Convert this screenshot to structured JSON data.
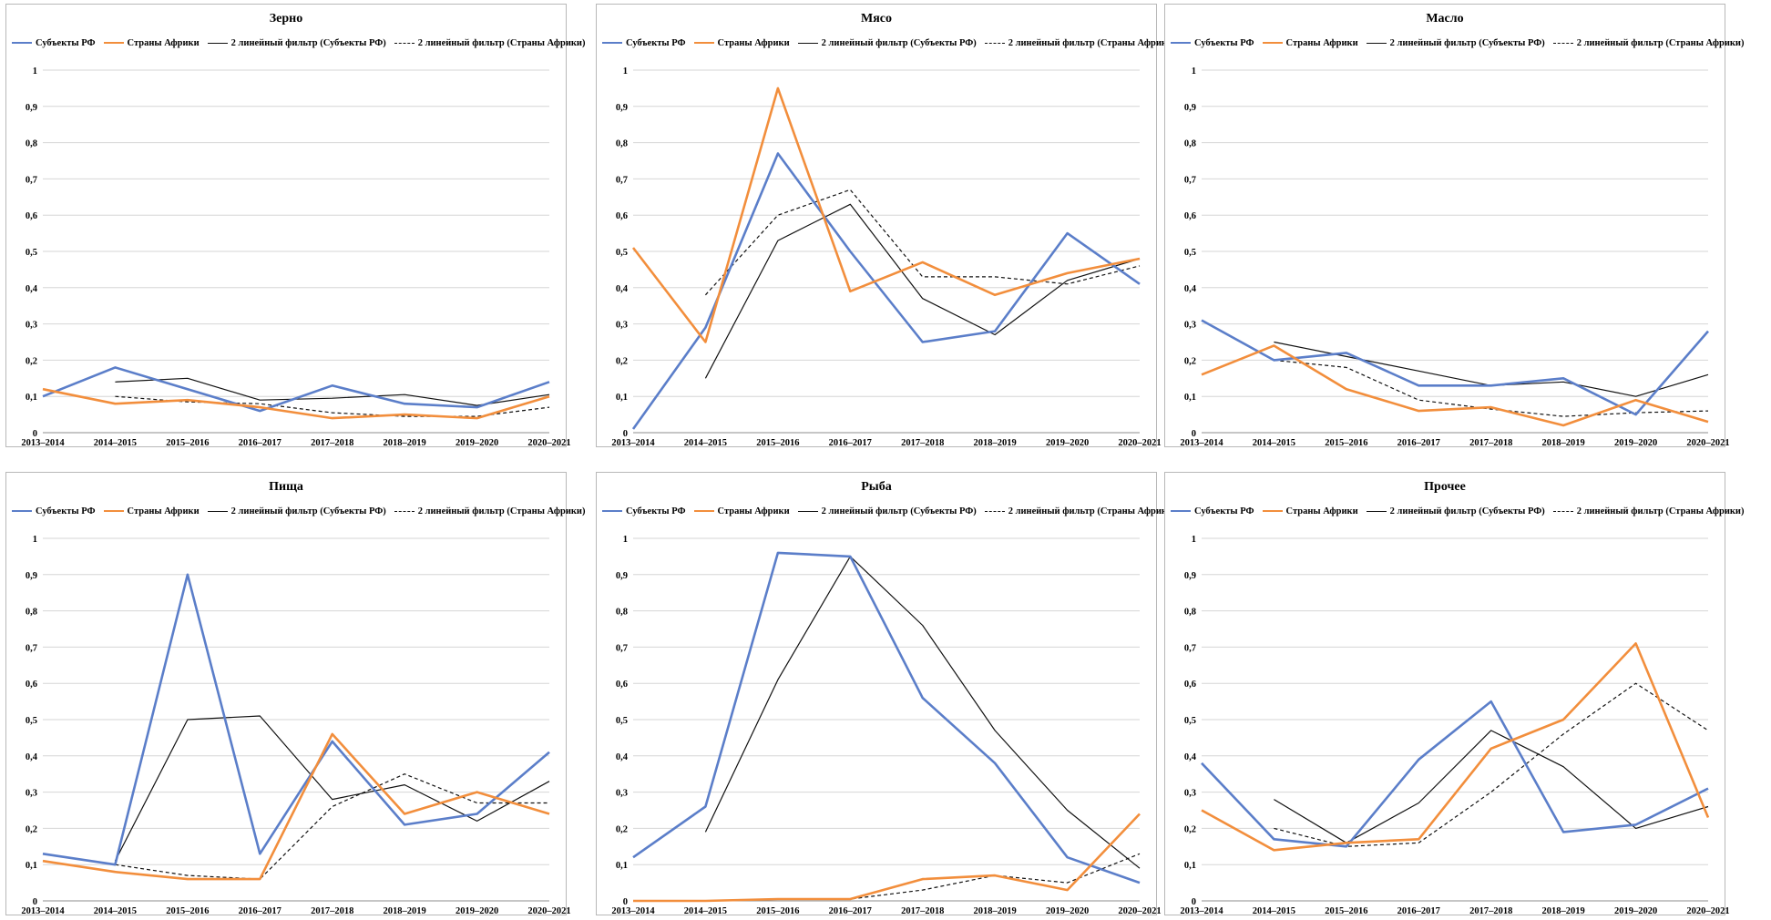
{
  "colors": {
    "rf": "#5B7EC9",
    "africa": "#F28E3C",
    "filter_rf": "#111111",
    "filter_africa": "#111111",
    "grid": "#d6d6d6"
  },
  "legend": {
    "rf": "Субъекты РФ",
    "africa": "Страны Африки",
    "filter_rf": "2 линейный фильтр (Субъекты РФ)",
    "filter_africa": "2 линейный фильтр (Страны Африки)"
  },
  "chart_data": [
    {
      "type": "line",
      "title": "Зерно",
      "categories": [
        "2013–2014",
        "2014–2015",
        "2015–2016",
        "2016–2017",
        "2017–2018",
        "2018–2019",
        "2019–2020",
        "2020–2021"
      ],
      "ylim": [
        0,
        1
      ],
      "yticks": [
        "0",
        "0,1",
        "0,2",
        "0,3",
        "0,4",
        "0,5",
        "0,6",
        "0,7",
        "0,8",
        "0,9",
        "1"
      ],
      "grid": true,
      "legend_position": "top",
      "series": [
        {
          "name": "Субъекты РФ",
          "values": [
            0.1,
            0.18,
            0.12,
            0.06,
            0.13,
            0.08,
            0.07,
            0.14
          ]
        },
        {
          "name": "Страны Африки",
          "values": [
            0.12,
            0.08,
            0.09,
            0.07,
            0.04,
            0.05,
            0.04,
            0.1
          ]
        },
        {
          "name": "2 линейный фильтр (Субъекты РФ)",
          "values": [
            null,
            0.14,
            0.15,
            0.09,
            0.095,
            0.105,
            0.075,
            0.105
          ]
        },
        {
          "name": "2 линейный фильтр (Страны Африки)",
          "values": [
            null,
            0.1,
            0.085,
            0.08,
            0.055,
            0.045,
            0.045,
            0.07
          ]
        }
      ]
    },
    {
      "type": "line",
      "title": "Мясо",
      "categories": [
        "2013–2014",
        "2014–2015",
        "2015–2016",
        "2016–2017",
        "2017–2018",
        "2018–2019",
        "2019–2020",
        "2020–2021"
      ],
      "ylim": [
        0,
        1
      ],
      "yticks": [
        "0",
        "0,1",
        "0,2",
        "0,3",
        "0,4",
        "0,5",
        "0,6",
        "0,7",
        "0,8",
        "0,9",
        "1"
      ],
      "grid": true,
      "legend_position": "top",
      "series": [
        {
          "name": "Субъекты РФ",
          "values": [
            0.01,
            0.29,
            0.77,
            0.5,
            0.25,
            0.28,
            0.55,
            0.41
          ]
        },
        {
          "name": "Страны Африки",
          "values": [
            0.51,
            0.25,
            0.95,
            0.39,
            0.47,
            0.38,
            0.44,
            0.48
          ]
        },
        {
          "name": "2 линейный фильтр (Субъекты РФ)",
          "values": [
            null,
            0.15,
            0.53,
            0.63,
            0.37,
            0.27,
            0.42,
            0.48
          ]
        },
        {
          "name": "2 линейный фильтр (Страны Африки)",
          "values": [
            null,
            0.38,
            0.6,
            0.67,
            0.43,
            0.43,
            0.41,
            0.46
          ]
        }
      ]
    },
    {
      "type": "line",
      "title": "Масло",
      "categories": [
        "2013–2014",
        "2014–2015",
        "2015–2016",
        "2016–2017",
        "2017–2018",
        "2018–2019",
        "2019–2020",
        "2020–2021"
      ],
      "ylim": [
        0,
        1
      ],
      "yticks": [
        "0",
        "0,1",
        "0,2",
        "0,3",
        "0,4",
        "0,5",
        "0,6",
        "0,7",
        "0,8",
        "0,9",
        "1"
      ],
      "grid": true,
      "legend_position": "top",
      "series": [
        {
          "name": "Субъекты РФ",
          "values": [
            0.31,
            0.2,
            0.22,
            0.13,
            0.13,
            0.15,
            0.05,
            0.28
          ]
        },
        {
          "name": "Страны Африки",
          "values": [
            0.16,
            0.24,
            0.12,
            0.06,
            0.07,
            0.02,
            0.09,
            0.03
          ]
        },
        {
          "name": "2 линейный фильтр (Субъекты РФ)",
          "values": [
            null,
            0.25,
            0.21,
            0.17,
            0.13,
            0.14,
            0.1,
            0.16
          ]
        },
        {
          "name": "2 линейный фильтр (Страны Африки)",
          "values": [
            null,
            0.2,
            0.18,
            0.09,
            0.065,
            0.045,
            0.055,
            0.06
          ]
        }
      ]
    },
    {
      "type": "line",
      "title": "Пища",
      "categories": [
        "2013–2014",
        "2014–2015",
        "2015–2016",
        "2016–2017",
        "2017–2018",
        "2018–2019",
        "2019–2020",
        "2020–2021"
      ],
      "ylim": [
        0,
        1
      ],
      "yticks": [
        "0",
        "0,1",
        "0,2",
        "0,3",
        "0,4",
        "0,5",
        "0,6",
        "0,7",
        "0,8",
        "0,9",
        "1"
      ],
      "grid": true,
      "legend_position": "top",
      "series": [
        {
          "name": "Субъекты РФ",
          "values": [
            0.13,
            0.1,
            0.9,
            0.13,
            0.44,
            0.21,
            0.24,
            0.41
          ]
        },
        {
          "name": "Страны Африки",
          "values": [
            0.11,
            0.08,
            0.06,
            0.06,
            0.46,
            0.24,
            0.3,
            0.24
          ]
        },
        {
          "name": "2 линейный фильтр (Субъекты РФ)",
          "values": [
            null,
            0.11,
            0.5,
            0.51,
            0.28,
            0.32,
            0.22,
            0.33
          ]
        },
        {
          "name": "2 линейный фильтр (Страны Африки)",
          "values": [
            null,
            0.1,
            0.07,
            0.06,
            0.26,
            0.35,
            0.27,
            0.27
          ]
        }
      ]
    },
    {
      "type": "line",
      "title": "Рыба",
      "categories": [
        "2013–2014",
        "2014–2015",
        "2015–2016",
        "2016–2017",
        "2017–2018",
        "2018–2019",
        "2019–2020",
        "2020–2021"
      ],
      "ylim": [
        0,
        1
      ],
      "yticks": [
        "0",
        "0,1",
        "0,2",
        "0,3",
        "0,4",
        "0,5",
        "0,6",
        "0,7",
        "0,8",
        "0,9",
        "1"
      ],
      "grid": true,
      "legend_position": "top",
      "series": [
        {
          "name": "Субъекты РФ",
          "values": [
            0.12,
            0.26,
            0.96,
            0.95,
            0.56,
            0.38,
            0.12,
            0.05
          ]
        },
        {
          "name": "Страны Африки",
          "values": [
            0.0,
            0.0,
            0.005,
            0.005,
            0.06,
            0.07,
            0.03,
            0.24
          ]
        },
        {
          "name": "2 линейный фильтр (Субъекты РФ)",
          "values": [
            null,
            0.19,
            0.61,
            0.95,
            0.76,
            0.47,
            0.25,
            0.09
          ]
        },
        {
          "name": "2 линейный фильтр (Страны Африки)",
          "values": [
            null,
            0.0,
            0.005,
            0.005,
            0.03,
            0.07,
            0.05,
            0.13
          ]
        }
      ]
    },
    {
      "type": "line",
      "title": "Прочее",
      "categories": [
        "2013–2014",
        "2014–2015",
        "2015–2016",
        "2016–2017",
        "2017–2018",
        "2018–2019",
        "2019–2020",
        "2020–2021"
      ],
      "ylim": [
        0,
        1
      ],
      "yticks": [
        "0",
        "0,1",
        "0,2",
        "0,3",
        "0,4",
        "0,5",
        "0,6",
        "0,7",
        "0,8",
        "0,9",
        "1"
      ],
      "grid": true,
      "legend_position": "top",
      "series": [
        {
          "name": "Субъекты РФ",
          "values": [
            0.38,
            0.17,
            0.15,
            0.39,
            0.55,
            0.19,
            0.21,
            0.31
          ]
        },
        {
          "name": "Страны Африки",
          "values": [
            0.25,
            0.14,
            0.16,
            0.17,
            0.42,
            0.5,
            0.71,
            0.23
          ]
        },
        {
          "name": "2 линейный фильтр (Субъекты РФ)",
          "values": [
            null,
            0.28,
            0.16,
            0.27,
            0.47,
            0.37,
            0.2,
            0.26
          ]
        },
        {
          "name": "2 линейный фильтр (Страны Африки)",
          "values": [
            null,
            0.2,
            0.15,
            0.16,
            0.3,
            0.46,
            0.6,
            0.47
          ]
        }
      ]
    }
  ]
}
